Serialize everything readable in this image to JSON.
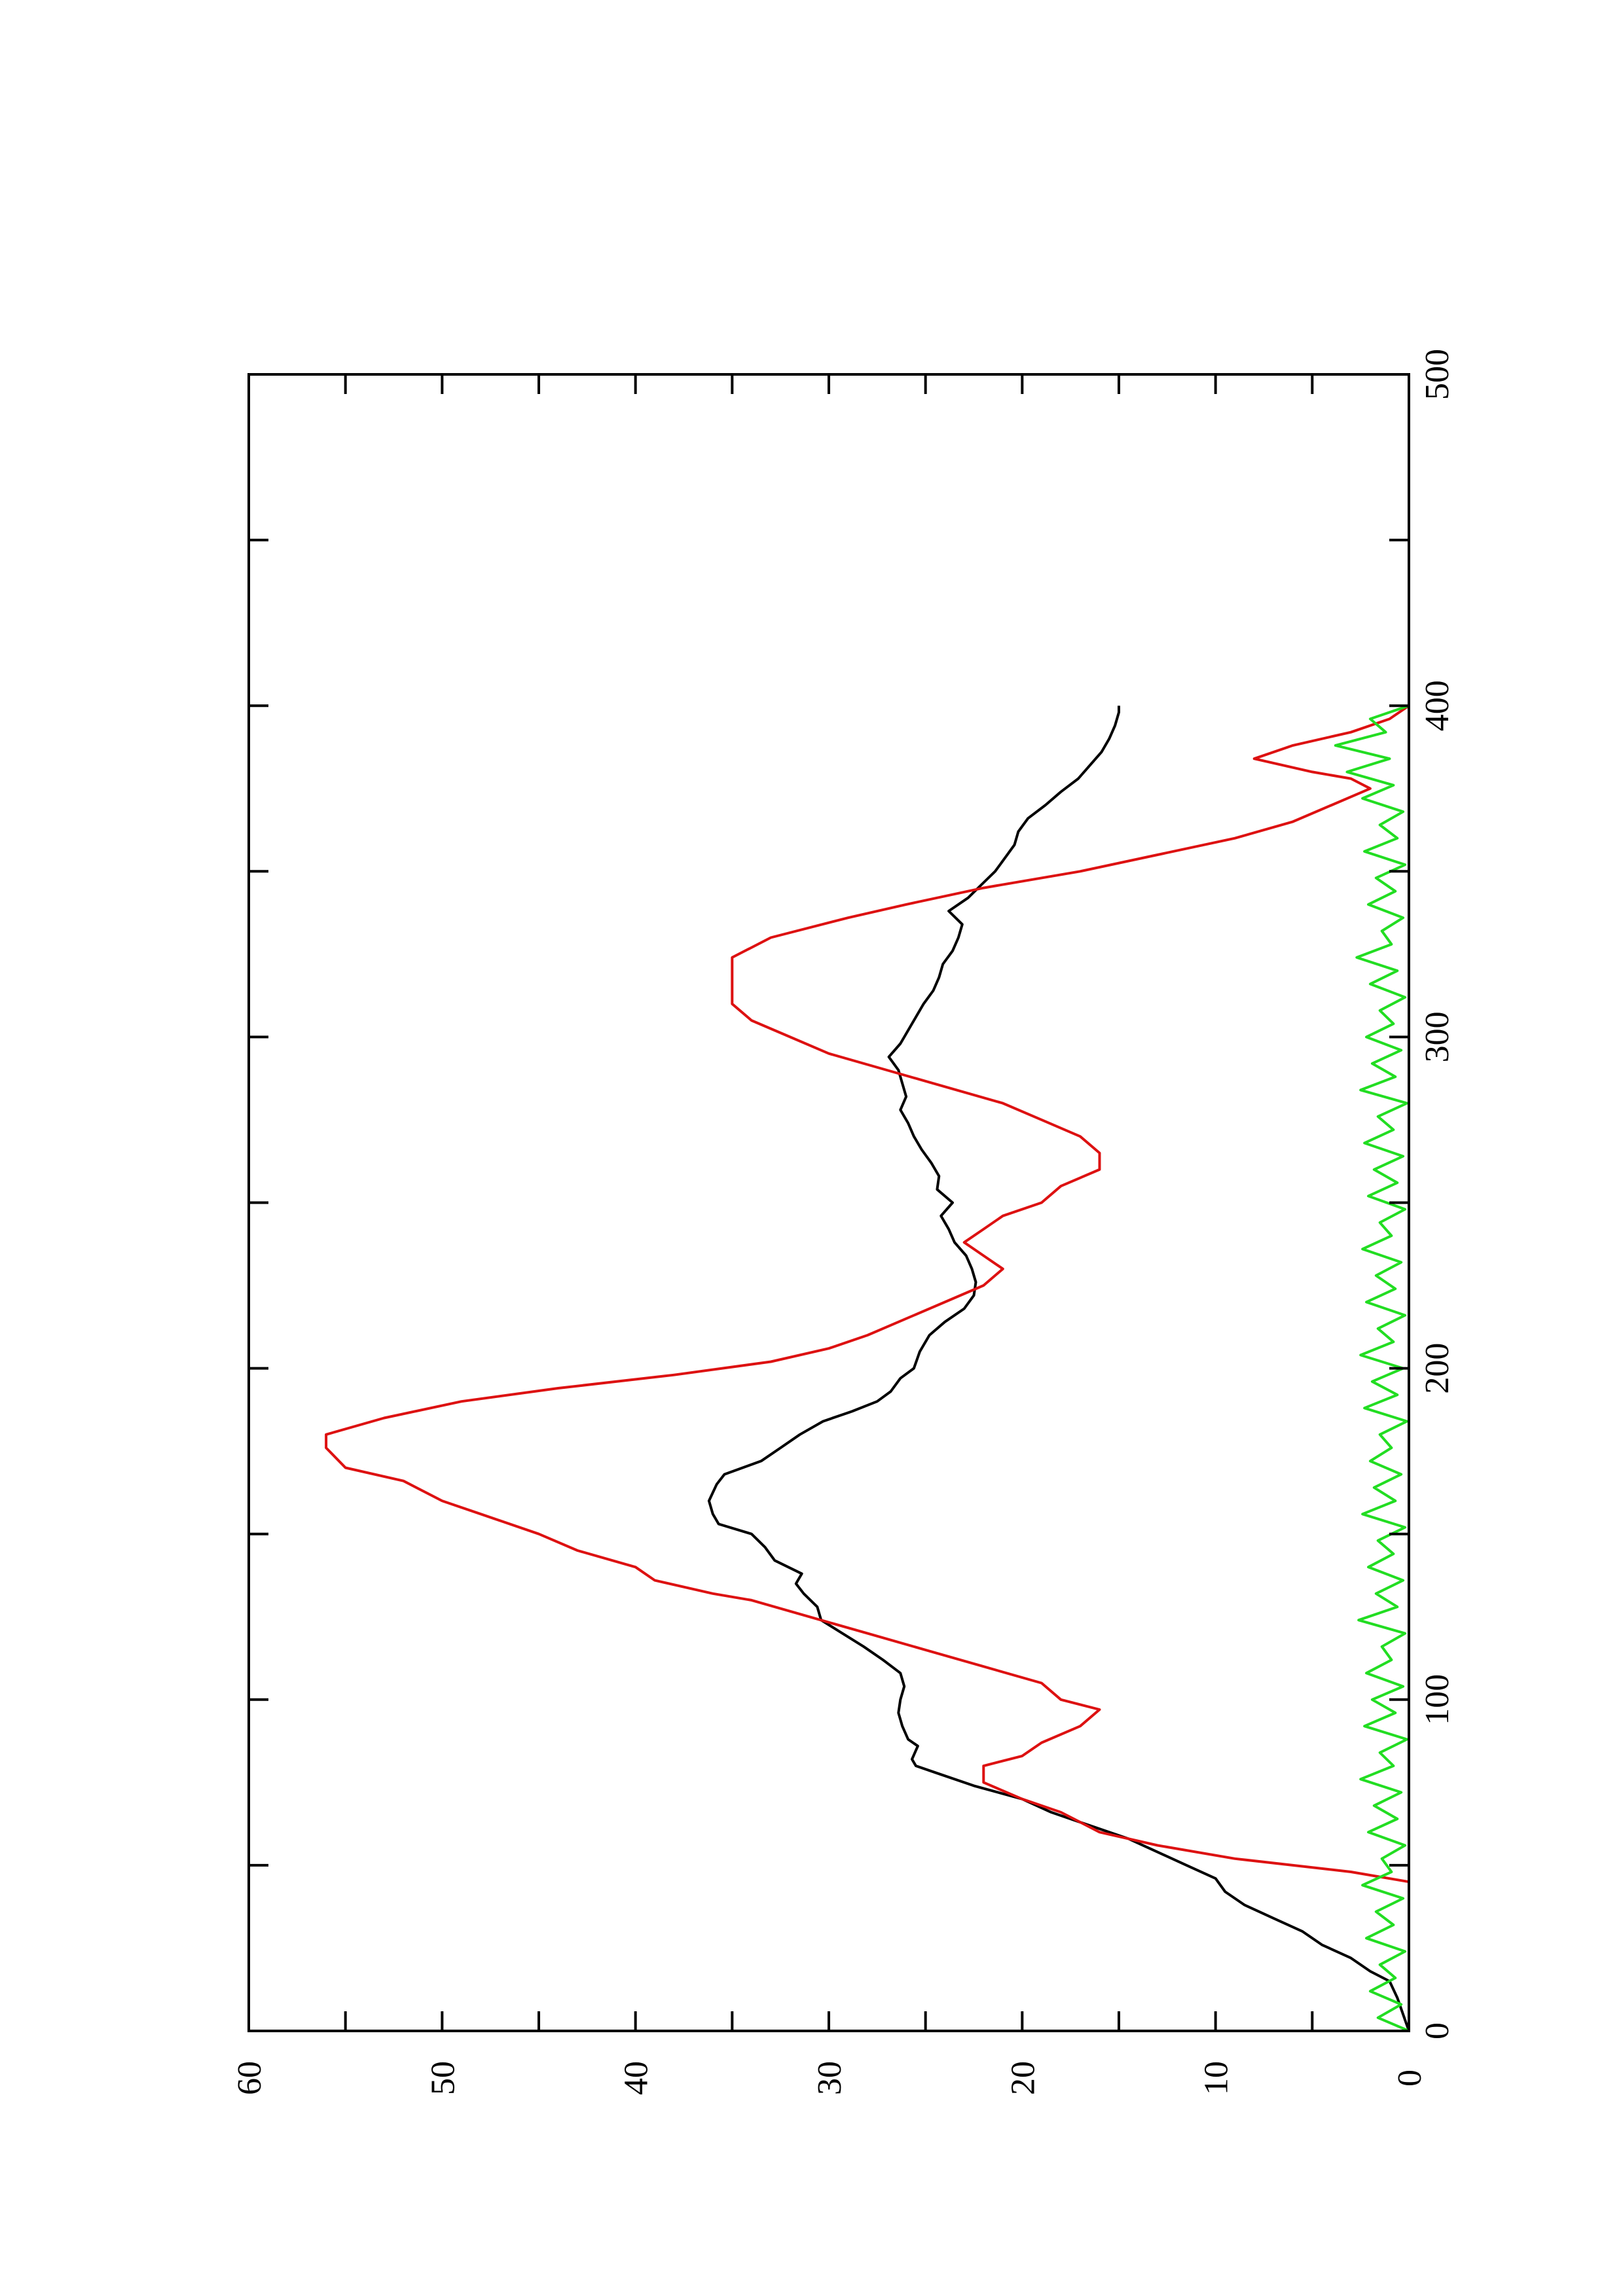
{
  "chart_data": {
    "type": "line",
    "title": "",
    "xlabel": "",
    "ylabel": "",
    "orientation": "rotated-90-ccw",
    "xlim": [
      0,
      500
    ],
    "ylim": [
      0,
      60
    ],
    "x_ticks": [
      0,
      100,
      200,
      300,
      400,
      500
    ],
    "y_ticks": [
      0,
      10,
      20,
      30,
      40,
      50,
      60
    ],
    "grid": false,
    "legend": "none",
    "series": [
      {
        "color": "#000000",
        "style": "line",
        "points": [
          [
            0,
            0
          ],
          [
            5,
            0.3
          ],
          [
            10,
            0.6
          ],
          [
            15,
            1
          ],
          [
            18,
            2
          ],
          [
            22,
            3
          ],
          [
            26,
            4.5
          ],
          [
            30,
            5.5
          ],
          [
            34,
            7
          ],
          [
            38,
            8.5
          ],
          [
            42,
            9.5
          ],
          [
            46,
            10
          ],
          [
            50,
            11.5
          ],
          [
            54,
            13
          ],
          [
            58,
            14.5
          ],
          [
            62,
            16.5
          ],
          [
            66,
            18.5
          ],
          [
            70,
            20
          ],
          [
            74,
            22.5
          ],
          [
            78,
            24.5
          ],
          [
            80,
            25.5
          ],
          [
            82,
            25.7
          ],
          [
            86,
            25.4
          ],
          [
            88,
            25.9
          ],
          [
            92,
            26.2
          ],
          [
            96,
            26.4
          ],
          [
            100,
            26.3
          ],
          [
            104,
            26.1
          ],
          [
            108,
            26.3
          ],
          [
            112,
            27.2
          ],
          [
            116,
            28.2
          ],
          [
            120,
            29.3
          ],
          [
            124,
            30.4
          ],
          [
            128,
            30.6
          ],
          [
            132,
            31.3
          ],
          [
            135,
            31.7
          ],
          [
            138,
            31.4
          ],
          [
            142,
            32.8
          ],
          [
            146,
            33.3
          ],
          [
            150,
            34
          ],
          [
            153,
            35.7
          ],
          [
            156,
            36
          ],
          [
            160,
            36.2
          ],
          [
            165,
            35.8
          ],
          [
            168,
            35.4
          ],
          [
            172,
            33.5
          ],
          [
            176,
            32.5
          ],
          [
            180,
            31.5
          ],
          [
            184,
            30.3
          ],
          [
            187,
            28.8
          ],
          [
            190,
            27.5
          ],
          [
            193,
            26.8
          ],
          [
            197,
            26.3
          ],
          [
            200,
            25.6
          ],
          [
            205,
            25.3
          ],
          [
            210,
            24.8
          ],
          [
            214,
            24
          ],
          [
            218,
            23
          ],
          [
            222,
            22.5
          ],
          [
            226,
            22.4
          ],
          [
            230,
            22.6
          ],
          [
            234,
            22.9
          ],
          [
            238,
            23.5
          ],
          [
            242,
            23.8
          ],
          [
            246,
            24.2
          ],
          [
            250,
            23.6
          ],
          [
            254,
            24.4
          ],
          [
            258,
            24.3
          ],
          [
            262,
            24.7
          ],
          [
            266,
            25.2
          ],
          [
            270,
            25.6
          ],
          [
            274,
            25.9
          ],
          [
            278,
            26.3
          ],
          [
            282,
            26
          ],
          [
            286,
            26.2
          ],
          [
            290,
            26.4
          ],
          [
            294,
            26.9
          ],
          [
            298,
            26.3
          ],
          [
            302,
            25.9
          ],
          [
            306,
            25.5
          ],
          [
            310,
            25.1
          ],
          [
            314,
            24.6
          ],
          [
            318,
            24.3
          ],
          [
            322,
            24.1
          ],
          [
            326,
            23.6
          ],
          [
            330,
            23.3
          ],
          [
            334,
            23.1
          ],
          [
            338,
            23.8
          ],
          [
            342,
            22.8
          ],
          [
            346,
            22.1
          ],
          [
            350,
            21.4
          ],
          [
            354,
            20.9
          ],
          [
            358,
            20.4
          ],
          [
            362,
            20.2
          ],
          [
            366,
            19.7
          ],
          [
            370,
            18.8
          ],
          [
            374,
            18
          ],
          [
            378,
            17.1
          ],
          [
            382,
            16.5
          ],
          [
            386,
            15.9
          ],
          [
            390,
            15.5
          ],
          [
            394,
            15.2
          ],
          [
            398,
            15.0
          ],
          [
            400,
            15.0
          ]
        ]
      },
      {
        "color": "#dd1111",
        "style": "line",
        "points": [
          [
            0,
            0
          ],
          [
            45,
            0
          ],
          [
            48,
            3
          ],
          [
            52,
            9
          ],
          [
            56,
            13
          ],
          [
            60,
            16
          ],
          [
            66,
            18
          ],
          [
            70,
            20
          ],
          [
            75,
            22
          ],
          [
            80,
            22
          ],
          [
            83,
            20
          ],
          [
            87,
            19
          ],
          [
            92,
            17
          ],
          [
            97,
            16
          ],
          [
            100,
            18
          ],
          [
            105,
            19
          ],
          [
            110,
            22
          ],
          [
            115,
            25
          ],
          [
            120,
            28
          ],
          [
            125,
            31
          ],
          [
            130,
            34
          ],
          [
            132,
            36
          ],
          [
            136,
            39
          ],
          [
            140,
            40
          ],
          [
            145,
            43
          ],
          [
            150,
            45
          ],
          [
            156,
            48
          ],
          [
            160,
            50
          ],
          [
            166,
            52
          ],
          [
            170,
            55
          ],
          [
            176,
            56
          ],
          [
            180,
            56
          ],
          [
            185,
            53
          ],
          [
            190,
            49
          ],
          [
            194,
            44
          ],
          [
            198,
            38
          ],
          [
            202,
            33
          ],
          [
            206,
            30
          ],
          [
            210,
            28
          ],
          [
            215,
            26
          ],
          [
            220,
            24
          ],
          [
            225,
            22
          ],
          [
            230,
            21
          ],
          [
            234,
            22
          ],
          [
            238,
            23
          ],
          [
            242,
            22
          ],
          [
            246,
            21
          ],
          [
            250,
            19
          ],
          [
            255,
            18
          ],
          [
            260,
            16
          ],
          [
            265,
            16
          ],
          [
            270,
            17
          ],
          [
            275,
            19
          ],
          [
            280,
            21
          ],
          [
            285,
            24
          ],
          [
            290,
            27
          ],
          [
            295,
            30
          ],
          [
            300,
            32
          ],
          [
            305,
            34
          ],
          [
            310,
            35
          ],
          [
            318,
            35
          ],
          [
            324,
            35
          ],
          [
            330,
            33
          ],
          [
            336,
            29
          ],
          [
            340,
            26
          ],
          [
            345,
            22
          ],
          [
            350,
            17
          ],
          [
            355,
            13
          ],
          [
            360,
            9
          ],
          [
            365,
            6
          ],
          [
            370,
            4
          ],
          [
            375,
            2
          ],
          [
            378,
            3
          ],
          [
            380,
            5
          ],
          [
            384,
            8
          ],
          [
            388,
            6
          ],
          [
            392,
            3
          ],
          [
            396,
            1
          ],
          [
            400,
            0
          ]
        ]
      },
      {
        "color": "#22dd22",
        "style": "line",
        "noise_amplitude": 1.4,
        "mean": 1.3,
        "points": [
          [
            0,
            0
          ],
          [
            4,
            1.6
          ],
          [
            8,
            0.4
          ],
          [
            12,
            2.0
          ],
          [
            16,
            0.7
          ],
          [
            20,
            1.5
          ],
          [
            24,
            0.2
          ],
          [
            28,
            2.2
          ],
          [
            32,
            0.8
          ],
          [
            36,
            1.7
          ],
          [
            40,
            0.3
          ],
          [
            44,
            2.4
          ],
          [
            48,
            0.9
          ],
          [
            52,
            1.4
          ],
          [
            56,
            0.2
          ],
          [
            60,
            2.1
          ],
          [
            64,
            0.6
          ],
          [
            68,
            1.8
          ],
          [
            72,
            0.4
          ],
          [
            76,
            2.5
          ],
          [
            80,
            0.8
          ],
          [
            84,
            1.5
          ],
          [
            88,
            0.1
          ],
          [
            92,
            2.3
          ],
          [
            96,
            0.7
          ],
          [
            100,
            1.9
          ],
          [
            104,
            0.3
          ],
          [
            108,
            2.2
          ],
          [
            112,
            0.9
          ],
          [
            116,
            1.4
          ],
          [
            120,
            0.2
          ],
          [
            124,
            2.6
          ],
          [
            128,
            0.6
          ],
          [
            132,
            1.7
          ],
          [
            136,
            0.3
          ],
          [
            140,
            2.1
          ],
          [
            144,
            0.8
          ],
          [
            148,
            1.6
          ],
          [
            152,
            0.2
          ],
          [
            156,
            2.4
          ],
          [
            160,
            0.7
          ],
          [
            164,
            1.8
          ],
          [
            168,
            0.4
          ],
          [
            172,
            2.0
          ],
          [
            176,
            0.9
          ],
          [
            180,
            1.5
          ],
          [
            184,
            0.1
          ],
          [
            188,
            2.3
          ],
          [
            192,
            0.6
          ],
          [
            196,
            1.9
          ],
          [
            200,
            0.3
          ],
          [
            204,
            2.5
          ],
          [
            208,
            0.8
          ],
          [
            212,
            1.6
          ],
          [
            216,
            0.2
          ],
          [
            220,
            2.2
          ],
          [
            224,
            0.7
          ],
          [
            228,
            1.7
          ],
          [
            232,
            0.4
          ],
          [
            236,
            2.4
          ],
          [
            240,
            0.9
          ],
          [
            244,
            1.5
          ],
          [
            248,
            0.2
          ],
          [
            252,
            2.1
          ],
          [
            256,
            0.6
          ],
          [
            260,
            1.8
          ],
          [
            264,
            0.3
          ],
          [
            268,
            2.3
          ],
          [
            272,
            0.8
          ],
          [
            276,
            1.6
          ],
          [
            280,
            0.1
          ],
          [
            284,
            2.5
          ],
          [
            288,
            0.7
          ],
          [
            292,
            1.9
          ],
          [
            296,
            0.4
          ],
          [
            300,
            2.2
          ],
          [
            304,
            0.8
          ],
          [
            308,
            1.5
          ],
          [
            312,
            0.2
          ],
          [
            316,
            2.0
          ],
          [
            320,
            0.6
          ],
          [
            324,
            2.7
          ],
          [
            328,
            0.9
          ],
          [
            332,
            1.4
          ],
          [
            336,
            0.3
          ],
          [
            340,
            2.1
          ],
          [
            344,
            0.7
          ],
          [
            348,
            1.7
          ],
          [
            352,
            0.2
          ],
          [
            356,
            2.3
          ],
          [
            360,
            0.6
          ],
          [
            364,
            1.5
          ],
          [
            368,
            0.3
          ],
          [
            372,
            2.4
          ],
          [
            376,
            0.8
          ],
          [
            380,
            3.2
          ],
          [
            384,
            1.0
          ],
          [
            388,
            3.8
          ],
          [
            392,
            1.2
          ],
          [
            396,
            2.0
          ],
          [
            400,
            0
          ]
        ]
      }
    ]
  }
}
